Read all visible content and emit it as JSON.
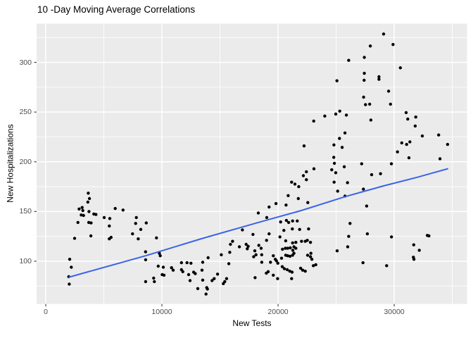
{
  "chart_data": {
    "type": "scatter",
    "title": "10 -Day Moving Average Correlations",
    "xlabel": "New Tests",
    "ylabel": "New Hospitalizations",
    "xlim": [
      -790,
      36270
    ],
    "ylim": [
      57,
      339
    ],
    "xticks": [
      0,
      10000,
      20000,
      30000
    ],
    "xtick_labels": [
      "0",
      "10000",
      "20000",
      "30000"
    ],
    "yticks": [
      100,
      150,
      200,
      250,
      300
    ],
    "ytick_labels": [
      "100",
      "150",
      "200",
      "250",
      "300"
    ],
    "x_minor_gridlines": [
      5000,
      15000,
      25000,
      35000
    ],
    "y_minor_gridlines": [
      75,
      125,
      175,
      225,
      275,
      325
    ],
    "grid": true,
    "legend": false,
    "panel_bg": "#EBEBEB",
    "grid_color": "#FFFFFF",
    "tick_color": "#4D4D4D",
    "point_color": "#000000",
    "trend_color": "#3C63E6",
    "trend_line": {
      "x": [
        2000,
        8600,
        13500,
        18300,
        22000,
        25800,
        29000,
        32000,
        34600
      ],
      "y": [
        84,
        105.5,
        123,
        139,
        151,
        165,
        175.5,
        184.5,
        193
      ]
    },
    "points": [
      [
        1980,
        84.5
      ],
      [
        2020,
        77
      ],
      [
        2060,
        102
      ],
      [
        2200,
        94
      ],
      [
        2480,
        123
      ],
      [
        2770,
        139
      ],
      [
        2870,
        152.5
      ],
      [
        3050,
        146.5
      ],
      [
        3130,
        154
      ],
      [
        3190,
        151
      ],
      [
        3250,
        146
      ],
      [
        3620,
        159.5
      ],
      [
        3660,
        168.5
      ],
      [
        3700,
        139
      ],
      [
        3720,
        150
      ],
      [
        3760,
        163
      ],
      [
        3880,
        125.5
      ],
      [
        3900,
        138.5
      ],
      [
        4140,
        147.5
      ],
      [
        4320,
        147
      ],
      [
        5030,
        144
      ],
      [
        5470,
        135.5
      ],
      [
        5470,
        122.5
      ],
      [
        5510,
        143
      ],
      [
        5620,
        124
      ],
      [
        5980,
        153
      ],
      [
        6650,
        151.5
      ],
      [
        7470,
        127.5
      ],
      [
        7740,
        138
      ],
      [
        7800,
        144
      ],
      [
        7960,
        122.5
      ],
      [
        8180,
        132
      ],
      [
        8590,
        109.5
      ],
      [
        8600,
        101.5
      ],
      [
        8600,
        79.5
      ],
      [
        8650,
        138.5
      ],
      [
        9290,
        83
      ],
      [
        9350,
        79.5
      ],
      [
        9530,
        123.5
      ],
      [
        9680,
        95
      ],
      [
        9780,
        108
      ],
      [
        9860,
        105.5
      ],
      [
        10020,
        86.5
      ],
      [
        10120,
        94
      ],
      [
        10180,
        86
      ],
      [
        10830,
        93.5
      ],
      [
        10970,
        91
      ],
      [
        11680,
        98.5
      ],
      [
        11680,
        91.5
      ],
      [
        11800,
        89.5
      ],
      [
        12160,
        98.5
      ],
      [
        12300,
        86.5
      ],
      [
        12420,
        80.5
      ],
      [
        12500,
        98
      ],
      [
        12730,
        89
      ],
      [
        12870,
        87.5
      ],
      [
        13090,
        72.5
      ],
      [
        13450,
        91
      ],
      [
        13510,
        99
      ],
      [
        13510,
        81
      ],
      [
        13800,
        67
      ],
      [
        13860,
        73.5
      ],
      [
        13920,
        72
      ],
      [
        13980,
        103.5
      ],
      [
        14320,
        80.5
      ],
      [
        14500,
        82.5
      ],
      [
        14790,
        87
      ],
      [
        15110,
        106.5
      ],
      [
        15290,
        77.5
      ],
      [
        15410,
        79.5
      ],
      [
        15570,
        82.5
      ],
      [
        15760,
        97.5
      ],
      [
        15840,
        109
      ],
      [
        15900,
        117
      ],
      [
        16080,
        120
      ],
      [
        16670,
        114.5
      ],
      [
        16930,
        131.5
      ],
      [
        17250,
        117
      ],
      [
        17350,
        112.5
      ],
      [
        17430,
        115
      ],
      [
        17840,
        127
      ],
      [
        17900,
        104.5
      ],
      [
        18000,
        110.5
      ],
      [
        18020,
        83.5
      ],
      [
        18100,
        106.5
      ],
      [
        18300,
        148.5
      ],
      [
        18340,
        116
      ],
      [
        18540,
        113
      ],
      [
        18590,
        106.5
      ],
      [
        18600,
        99
      ],
      [
        18990,
        88
      ],
      [
        19010,
        121
      ],
      [
        19030,
        144
      ],
      [
        19150,
        89.5
      ],
      [
        19230,
        154.5
      ],
      [
        19230,
        127.5
      ],
      [
        19350,
        99
      ],
      [
        19590,
        105.5
      ],
      [
        19590,
        86
      ],
      [
        19760,
        102
      ],
      [
        19820,
        158
      ],
      [
        19860,
        100.5
      ],
      [
        19960,
        82.5
      ],
      [
        19980,
        98
      ],
      [
        20160,
        124.5
      ],
      [
        20220,
        139.5
      ],
      [
        20300,
        103
      ],
      [
        20360,
        94.5
      ],
      [
        20380,
        112
      ],
      [
        20500,
        131
      ],
      [
        20540,
        92.5
      ],
      [
        20630,
        113
      ],
      [
        20660,
        120.5
      ],
      [
        20660,
        106
      ],
      [
        20690,
        156.5
      ],
      [
        20720,
        141
      ],
      [
        20790,
        91.5
      ],
      [
        20830,
        113
      ],
      [
        20830,
        105.5
      ],
      [
        20870,
        166
      ],
      [
        20910,
        139
      ],
      [
        21010,
        90
      ],
      [
        21030,
        105
      ],
      [
        21050,
        113.5
      ],
      [
        21170,
        179.5
      ],
      [
        21170,
        82.5
      ],
      [
        21210,
        89
      ],
      [
        21230,
        132.5
      ],
      [
        21250,
        140.5
      ],
      [
        21250,
        118.5
      ],
      [
        21250,
        106
      ],
      [
        21270,
        111
      ],
      [
        21370,
        114.5
      ],
      [
        21370,
        108
      ],
      [
        21450,
        177.5
      ],
      [
        21530,
        119
      ],
      [
        21530,
        113
      ],
      [
        21650,
        140.5
      ],
      [
        21740,
        163
      ],
      [
        21780,
        175
      ],
      [
        21860,
        132
      ],
      [
        21940,
        93
      ],
      [
        22020,
        120
      ],
      [
        22120,
        91
      ],
      [
        22180,
        186
      ],
      [
        22240,
        216
      ],
      [
        22340,
        120
      ],
      [
        22340,
        90
      ],
      [
        22440,
        190
      ],
      [
        22440,
        182
      ],
      [
        22520,
        121
      ],
      [
        22540,
        106
      ],
      [
        22560,
        159
      ],
      [
        22630,
        132.5
      ],
      [
        22790,
        119
      ],
      [
        22790,
        104.5
      ],
      [
        22830,
        108
      ],
      [
        22910,
        102
      ],
      [
        23040,
        95.5
      ],
      [
        23070,
        241
      ],
      [
        23090,
        193
      ],
      [
        23250,
        96.5
      ],
      [
        24020,
        246
      ],
      [
        24620,
        192
      ],
      [
        24800,
        204.5
      ],
      [
        24810,
        217
      ],
      [
        24830,
        179.5
      ],
      [
        24850,
        198.5
      ],
      [
        24970,
        248
      ],
      [
        24970,
        189
      ],
      [
        25070,
        281.5
      ],
      [
        25090,
        110.5
      ],
      [
        25130,
        170.5
      ],
      [
        25290,
        223.5
      ],
      [
        25310,
        251
      ],
      [
        25520,
        214.5
      ],
      [
        25700,
        195
      ],
      [
        25760,
        229
      ],
      [
        25760,
        165.5
      ],
      [
        25880,
        247
      ],
      [
        25980,
        179
      ],
      [
        26000,
        114.5
      ],
      [
        26080,
        302
      ],
      [
        26080,
        125
      ],
      [
        26200,
        138
      ],
      [
        27200,
        198
      ],
      [
        27310,
        98.5
      ],
      [
        27350,
        172.5
      ],
      [
        27410,
        282
      ],
      [
        27370,
        265
      ],
      [
        27430,
        305
      ],
      [
        27430,
        289
      ],
      [
        27530,
        257.5
      ],
      [
        27630,
        155.5
      ],
      [
        27690,
        127.5
      ],
      [
        27890,
        258
      ],
      [
        27940,
        316.5
      ],
      [
        27990,
        242
      ],
      [
        28060,
        187
      ],
      [
        28690,
        285.5
      ],
      [
        28690,
        283
      ],
      [
        28820,
        188
      ],
      [
        29090,
        328.5
      ],
      [
        29350,
        95.5
      ],
      [
        29520,
        271
      ],
      [
        29680,
        258
      ],
      [
        29760,
        198
      ],
      [
        29770,
        124.5
      ],
      [
        29900,
        318
      ],
      [
        30280,
        210
      ],
      [
        30530,
        294.5
      ],
      [
        30650,
        219
      ],
      [
        31030,
        249.5
      ],
      [
        31070,
        217.5
      ],
      [
        31170,
        243
      ],
      [
        31270,
        204
      ],
      [
        31350,
        220
      ],
      [
        31650,
        104
      ],
      [
        31680,
        116.5
      ],
      [
        31700,
        102
      ],
      [
        31810,
        236
      ],
      [
        31860,
        245
      ],
      [
        32160,
        111
      ],
      [
        32420,
        226
      ],
      [
        32850,
        126
      ],
      [
        32990,
        125.5
      ],
      [
        33830,
        227
      ],
      [
        33940,
        203
      ],
      [
        34600,
        217.5
      ]
    ]
  }
}
